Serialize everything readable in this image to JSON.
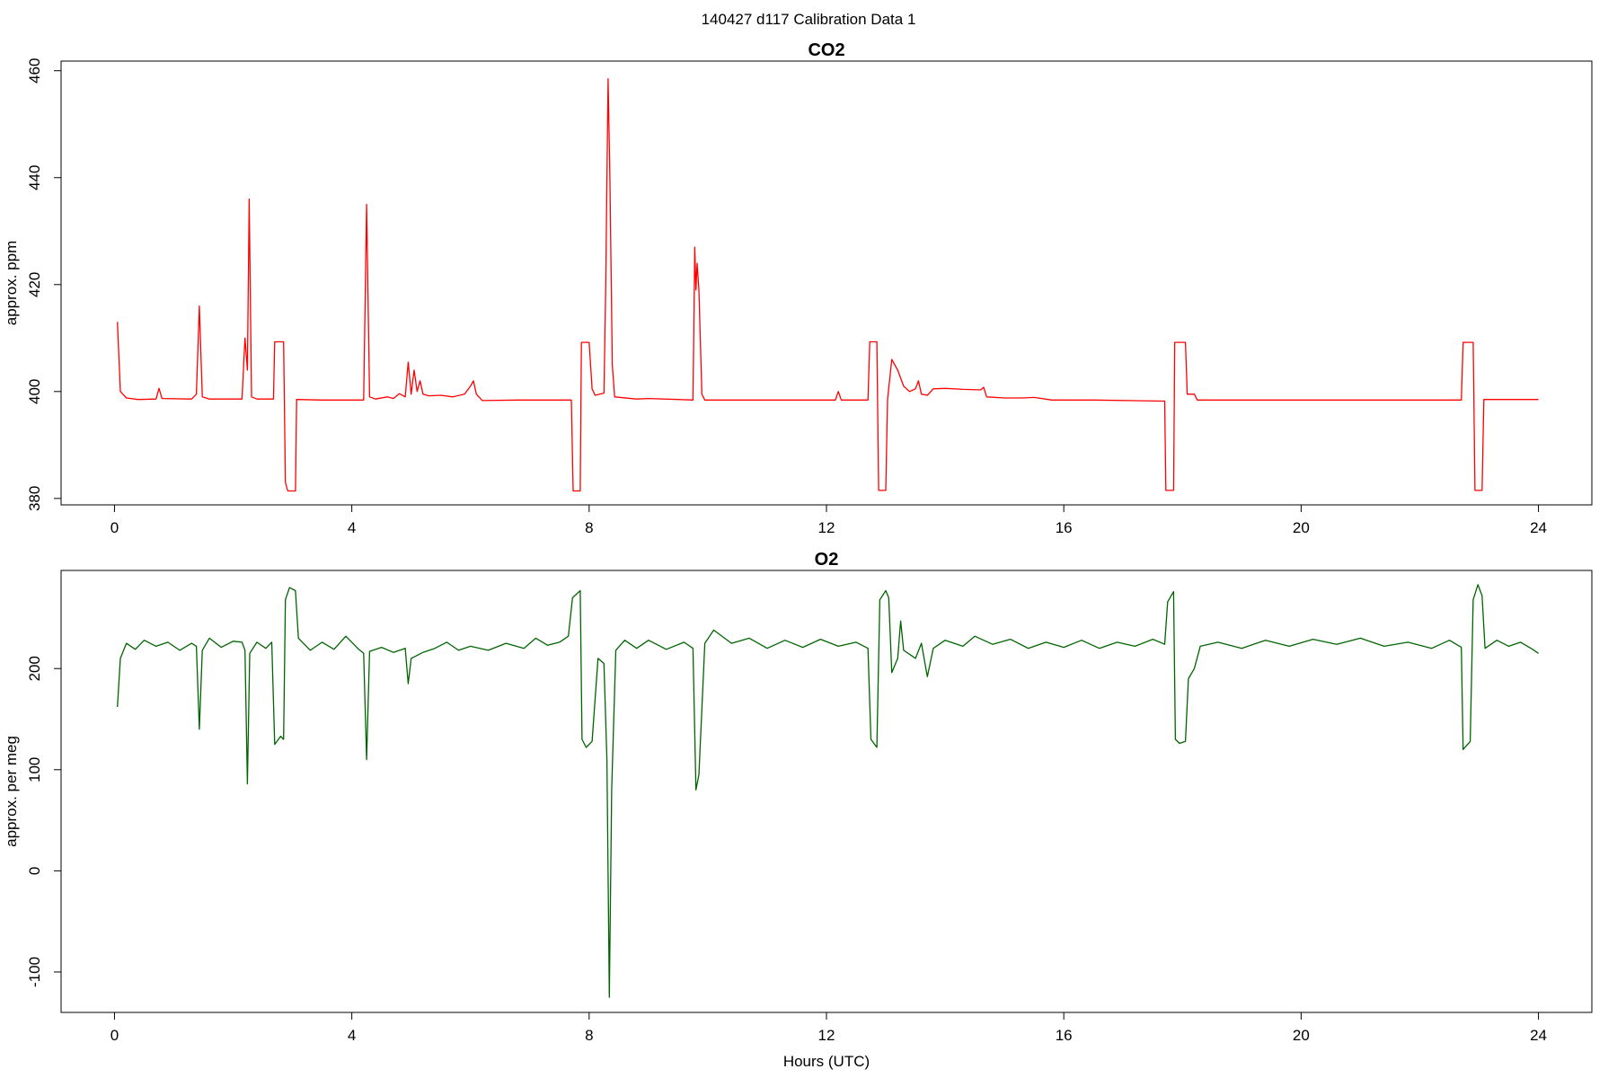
{
  "figure_title": "140427   d117   Calibration Data 1",
  "colors": {
    "co2": "#ff0000",
    "o2": "#006400",
    "frame": "#000000"
  },
  "chart_data": [
    {
      "type": "line",
      "title": "CO2",
      "xlabel": "",
      "ylabel": "approx. ppm",
      "xlim": [
        -0.9,
        24.9
      ],
      "ylim": [
        378.8,
        461.8
      ],
      "xticks": [
        0,
        4,
        8,
        12,
        16,
        20,
        24
      ],
      "yticks": [
        380,
        400,
        420,
        440,
        460
      ],
      "grid": false,
      "series": [
        {
          "color": "#ff0000",
          "points": [
            [
              0.05,
              413
            ],
            [
              0.1,
              400
            ],
            [
              0.2,
              398.8
            ],
            [
              0.4,
              398.5
            ],
            [
              0.7,
              398.6
            ],
            [
              0.75,
              400.6
            ],
            [
              0.8,
              398.7
            ],
            [
              1.3,
              398.6
            ],
            [
              1.38,
              399.5
            ],
            [
              1.43,
              416
            ],
            [
              1.48,
              399
            ],
            [
              1.6,
              398.6
            ],
            [
              2.15,
              398.6
            ],
            [
              2.2,
              410
            ],
            [
              2.24,
              404
            ],
            [
              2.27,
              436
            ],
            [
              2.31,
              399
            ],
            [
              2.4,
              398.6
            ],
            [
              2.68,
              398.6
            ],
            [
              2.7,
              409.3
            ],
            [
              2.85,
              409.3
            ],
            [
              2.88,
              383
            ],
            [
              2.92,
              381.4
            ],
            [
              3.05,
              381.4
            ],
            [
              3.07,
              398.5
            ],
            [
              3.5,
              398.4
            ],
            [
              4.2,
              398.4
            ],
            [
              4.25,
              435
            ],
            [
              4.3,
              399
            ],
            [
              4.4,
              398.6
            ],
            [
              4.6,
              399
            ],
            [
              4.7,
              398.7
            ],
            [
              4.8,
              399.6
            ],
            [
              4.9,
              399
            ],
            [
              4.95,
              405.5
            ],
            [
              5.0,
              399.5
            ],
            [
              5.05,
              404
            ],
            [
              5.1,
              400
            ],
            [
              5.15,
              402
            ],
            [
              5.2,
              399.5
            ],
            [
              5.3,
              399.2
            ],
            [
              5.5,
              399.3
            ],
            [
              5.7,
              399
            ],
            [
              5.9,
              399.5
            ],
            [
              6.0,
              401
            ],
            [
              6.05,
              402
            ],
            [
              6.1,
              399.5
            ],
            [
              6.2,
              398.3
            ],
            [
              6.8,
              398.4
            ],
            [
              7.7,
              398.4
            ],
            [
              7.73,
              381.4
            ],
            [
              7.85,
              381.4
            ],
            [
              7.87,
              409.2
            ],
            [
              8.0,
              409.2
            ],
            [
              8.05,
              400.5
            ],
            [
              8.1,
              399.3
            ],
            [
              8.25,
              399.7
            ],
            [
              8.28,
              420
            ],
            [
              8.32,
              458.5
            ],
            [
              8.35,
              440
            ],
            [
              8.39,
              405
            ],
            [
              8.43,
              399
            ],
            [
              8.8,
              398.6
            ],
            [
              9.0,
              398.7
            ],
            [
              9.5,
              398.5
            ],
            [
              9.75,
              398.4
            ],
            [
              9.78,
              427
            ],
            [
              9.8,
              419
            ],
            [
              9.82,
              424
            ],
            [
              9.85,
              419
            ],
            [
              9.9,
              399.5
            ],
            [
              9.95,
              398.4
            ],
            [
              11.0,
              398.4
            ],
            [
              12.15,
              398.4
            ],
            [
              12.2,
              400
            ],
            [
              12.25,
              398.4
            ],
            [
              12.7,
              398.4
            ],
            [
              12.73,
              409.3
            ],
            [
              12.85,
              409.3
            ],
            [
              12.88,
              381.5
            ],
            [
              13.0,
              381.5
            ],
            [
              13.03,
              398.5
            ],
            [
              13.1,
              406
            ],
            [
              13.2,
              404
            ],
            [
              13.3,
              401
            ],
            [
              13.4,
              400
            ],
            [
              13.5,
              400.5
            ],
            [
              13.55,
              402
            ],
            [
              13.6,
              399.5
            ],
            [
              13.7,
              399.3
            ],
            [
              13.8,
              400.5
            ],
            [
              14.0,
              400.6
            ],
            [
              14.3,
              400.4
            ],
            [
              14.6,
              400.3
            ],
            [
              14.65,
              400.8
            ],
            [
              14.7,
              399
            ],
            [
              15.0,
              398.8
            ],
            [
              15.3,
              398.8
            ],
            [
              15.5,
              398.9
            ],
            [
              15.8,
              398.4
            ],
            [
              16.5,
              398.4
            ],
            [
              17.7,
              398.2
            ],
            [
              17.72,
              381.5
            ],
            [
              17.85,
              381.5
            ],
            [
              17.87,
              409.2
            ],
            [
              18.05,
              409.2
            ],
            [
              18.08,
              399.5
            ],
            [
              18.2,
              399.5
            ],
            [
              18.25,
              398.4
            ],
            [
              19.0,
              398.4
            ],
            [
              20.5,
              398.4
            ],
            [
              22.7,
              398.4
            ],
            [
              22.73,
              409.2
            ],
            [
              22.9,
              409.2
            ],
            [
              22.93,
              381.5
            ],
            [
              23.05,
              381.5
            ],
            [
              23.08,
              398.5
            ],
            [
              24,
              398.5
            ]
          ]
        }
      ]
    },
    {
      "type": "line",
      "title": "O2",
      "xlabel": "Hours (UTC)",
      "ylabel": "approx. per meg",
      "xlim": [
        -0.9,
        24.9
      ],
      "ylim": [
        -140,
        297
      ],
      "xticks": [
        0,
        4,
        8,
        12,
        16,
        20,
        24
      ],
      "yticks": [
        -100,
        0,
        100,
        200
      ],
      "grid": false,
      "series": [
        {
          "color": "#006400",
          "points": [
            [
              0.05,
              162
            ],
            [
              0.1,
              210
            ],
            [
              0.2,
              225
            ],
            [
              0.35,
              219
            ],
            [
              0.5,
              228
            ],
            [
              0.7,
              222
            ],
            [
              0.9,
              226
            ],
            [
              1.1,
              218
            ],
            [
              1.3,
              225
            ],
            [
              1.38,
              222
            ],
            [
              1.43,
              140
            ],
            [
              1.48,
              218
            ],
            [
              1.6,
              230
            ],
            [
              1.8,
              221
            ],
            [
              2.0,
              227
            ],
            [
              2.15,
              226
            ],
            [
              2.2,
              218
            ],
            [
              2.24,
              86
            ],
            [
              2.28,
              215
            ],
            [
              2.4,
              226
            ],
            [
              2.55,
              220
            ],
            [
              2.65,
              226
            ],
            [
              2.7,
              125
            ],
            [
              2.8,
              133
            ],
            [
              2.85,
              130
            ],
            [
              2.88,
              268
            ],
            [
              2.95,
              280
            ],
            [
              3.05,
              277
            ],
            [
              3.1,
              230
            ],
            [
              3.3,
              218
            ],
            [
              3.5,
              226
            ],
            [
              3.7,
              219
            ],
            [
              3.9,
              232
            ],
            [
              4.1,
              220
            ],
            [
              4.2,
              215
            ],
            [
              4.25,
              110
            ],
            [
              4.3,
              217
            ],
            [
              4.5,
              221
            ],
            [
              4.7,
              216
            ],
            [
              4.9,
              220
            ],
            [
              4.95,
              185
            ],
            [
              5.0,
              210
            ],
            [
              5.2,
              216
            ],
            [
              5.4,
              220
            ],
            [
              5.6,
              226
            ],
            [
              5.8,
              218
            ],
            [
              6.0,
              222
            ],
            [
              6.3,
              218
            ],
            [
              6.6,
              225
            ],
            [
              6.9,
              220
            ],
            [
              7.1,
              230
            ],
            [
              7.3,
              223
            ],
            [
              7.5,
              226
            ],
            [
              7.65,
              232
            ],
            [
              7.72,
              270
            ],
            [
              7.85,
              277
            ],
            [
              7.88,
              130
            ],
            [
              7.95,
              122
            ],
            [
              8.05,
              128
            ],
            [
              8.15,
              210
            ],
            [
              8.25,
              205
            ],
            [
              8.3,
              110
            ],
            [
              8.34,
              -125
            ],
            [
              8.38,
              80
            ],
            [
              8.45,
              218
            ],
            [
              8.6,
              228
            ],
            [
              8.8,
              220
            ],
            [
              9.0,
              228
            ],
            [
              9.3,
              219
            ],
            [
              9.6,
              226
            ],
            [
              9.75,
              220
            ],
            [
              9.8,
              80
            ],
            [
              9.85,
              95
            ],
            [
              9.95,
              225
            ],
            [
              10.1,
              238
            ],
            [
              10.4,
              225
            ],
            [
              10.7,
              230
            ],
            [
              11.0,
              220
            ],
            [
              11.3,
              228
            ],
            [
              11.6,
              221
            ],
            [
              11.9,
              229
            ],
            [
              12.2,
              222
            ],
            [
              12.5,
              226
            ],
            [
              12.7,
              220
            ],
            [
              12.75,
              130
            ],
            [
              12.85,
              122
            ],
            [
              12.9,
              268
            ],
            [
              13.0,
              277
            ],
            [
              13.05,
              270
            ],
            [
              13.1,
              196
            ],
            [
              13.2,
              210
            ],
            [
              13.25,
              247
            ],
            [
              13.3,
              218
            ],
            [
              13.5,
              210
            ],
            [
              13.6,
              225
            ],
            [
              13.7,
              192
            ],
            [
              13.8,
              220
            ],
            [
              14.0,
              228
            ],
            [
              14.3,
              222
            ],
            [
              14.5,
              232
            ],
            [
              14.8,
              224
            ],
            [
              15.1,
              229
            ],
            [
              15.4,
              220
            ],
            [
              15.7,
              226
            ],
            [
              16.0,
              221
            ],
            [
              16.3,
              228
            ],
            [
              16.6,
              220
            ],
            [
              16.9,
              226
            ],
            [
              17.2,
              222
            ],
            [
              17.5,
              229
            ],
            [
              17.7,
              224
            ],
            [
              17.75,
              266
            ],
            [
              17.85,
              276
            ],
            [
              17.88,
              130
            ],
            [
              17.95,
              126
            ],
            [
              18.05,
              128
            ],
            [
              18.1,
              190
            ],
            [
              18.2,
              200
            ],
            [
              18.3,
              222
            ],
            [
              18.6,
              226
            ],
            [
              19.0,
              220
            ],
            [
              19.4,
              228
            ],
            [
              19.8,
              222
            ],
            [
              20.2,
              229
            ],
            [
              20.6,
              224
            ],
            [
              21.0,
              230
            ],
            [
              21.4,
              222
            ],
            [
              21.8,
              226
            ],
            [
              22.2,
              220
            ],
            [
              22.5,
              228
            ],
            [
              22.7,
              221
            ],
            [
              22.73,
              120
            ],
            [
              22.85,
              128
            ],
            [
              22.9,
              268
            ],
            [
              22.98,
              283
            ],
            [
              23.05,
              272
            ],
            [
              23.1,
              220
            ],
            [
              23.3,
              228
            ],
            [
              23.5,
              222
            ],
            [
              23.7,
              226
            ],
            [
              23.9,
              219
            ],
            [
              24,
              215
            ]
          ]
        }
      ]
    }
  ]
}
